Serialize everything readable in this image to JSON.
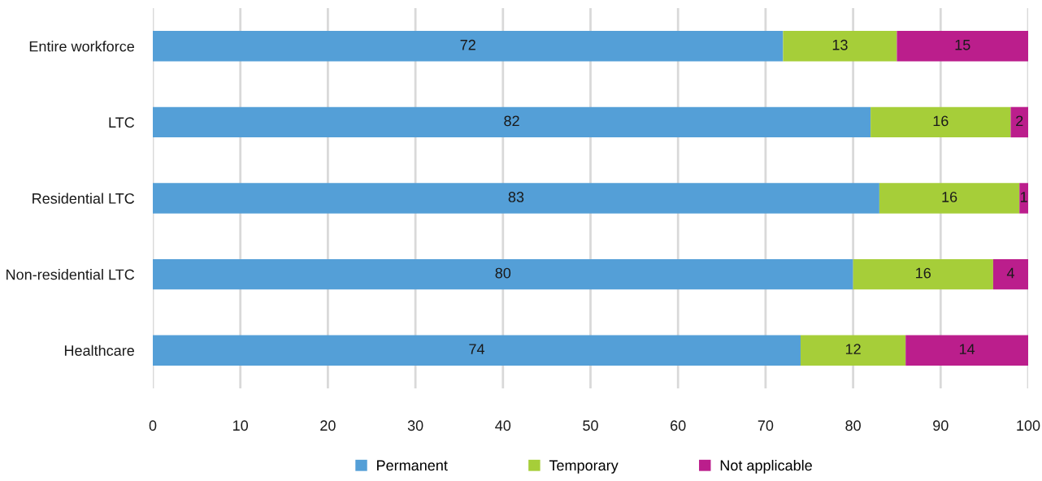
{
  "chart_data": {
    "type": "bar",
    "orientation": "horizontal",
    "stacked": true,
    "categories": [
      "Entire workforce",
      "LTC",
      "Residential LTC",
      "Non-residential LTC",
      "Healthcare"
    ],
    "series": [
      {
        "name": "Permanent",
        "color": "#549fd7",
        "values": [
          72,
          82,
          83,
          80,
          74
        ]
      },
      {
        "name": "Temporary",
        "color": "#a6ce39",
        "values": [
          13,
          16,
          16,
          16,
          12
        ]
      },
      {
        "name": "Not applicable",
        "color": "#bb1e8c",
        "values": [
          15,
          2,
          1,
          4,
          14
        ]
      }
    ],
    "xlim": [
      0,
      100
    ],
    "xticks": [
      0,
      10,
      20,
      30,
      40,
      50,
      60,
      70,
      80,
      90,
      100
    ],
    "grid": "x",
    "legend": "bottom",
    "data_labels": true
  }
}
